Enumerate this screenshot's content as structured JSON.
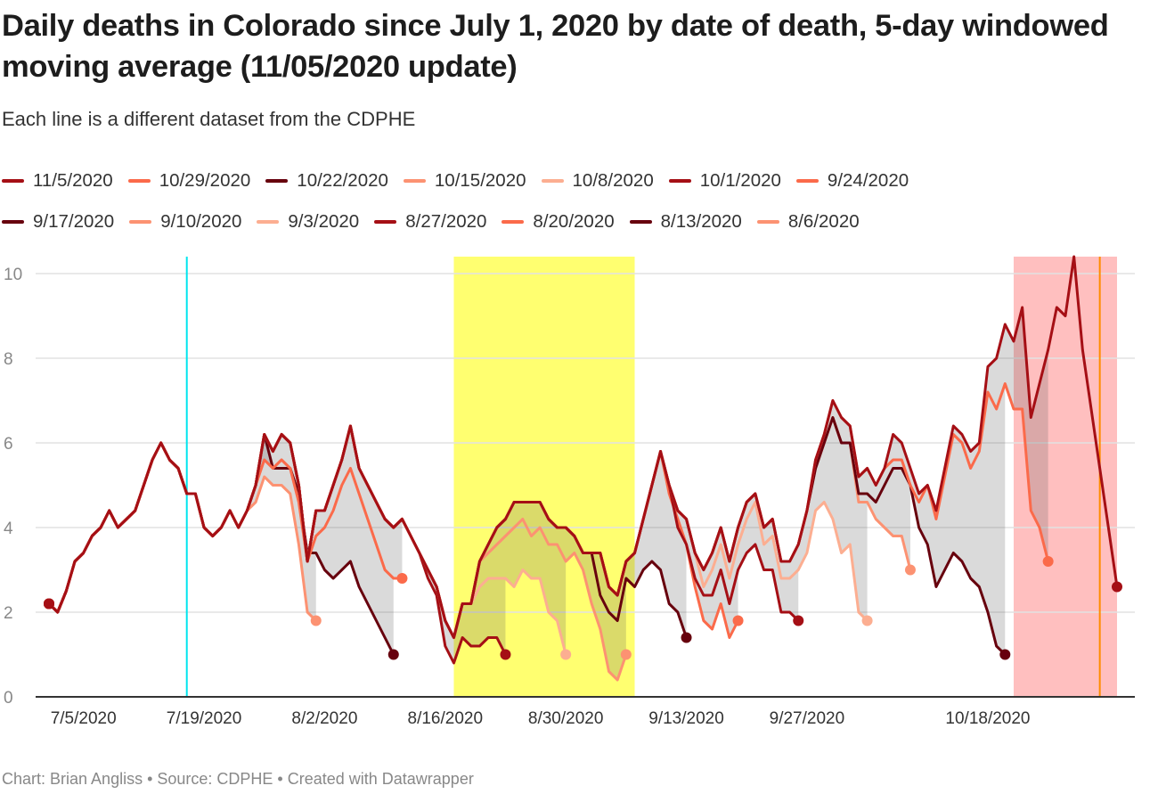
{
  "chart_data": {
    "type": "line",
    "title": "Daily deaths in Colorado since July 1, 2020 by date of death, 5-day windowed moving average (11/05/2020 update)",
    "subtitle": "Each line is a different dataset from the CDPHE",
    "footer": "Chart: Brian Angliss • Source: CDPHE • Created with Datawrapper",
    "xlabel": "",
    "ylabel": "",
    "ylim": [
      0,
      10.4
    ],
    "y_ticks": [
      0,
      2,
      4,
      6,
      8,
      10
    ],
    "x_range": [
      "2020-07-01",
      "2020-11-02"
    ],
    "x_ticks": [
      {
        "date": "2020-07-05",
        "label": "7/5/2020"
      },
      {
        "date": "2020-07-19",
        "label": "7/19/2020"
      },
      {
        "date": "2020-08-02",
        "label": "8/2/2020"
      },
      {
        "date": "2020-08-16",
        "label": "8/16/2020"
      },
      {
        "date": "2020-08-30",
        "label": "8/30/2020"
      },
      {
        "date": "2020-09-13",
        "label": "9/13/2020"
      },
      {
        "date": "2020-09-27",
        "label": "9/27/2020"
      },
      {
        "date": "2020-10-18",
        "label": "10/18/2020"
      }
    ],
    "grid": true,
    "legend_position": "top",
    "annotations": {
      "vertical_lines": [
        {
          "date": "2020-07-17",
          "color": "#00e5ee"
        },
        {
          "date": "2020-10-31",
          "color": "#ff8c00"
        }
      ],
      "ranges": [
        {
          "from": "2020-08-17",
          "to": "2020-09-07",
          "color": "#ffff70"
        },
        {
          "from": "2020-10-21",
          "to": "2020-11-02",
          "color": "#ffbfbf"
        }
      ]
    },
    "latest_values_start": "2020-07-01",
    "latest_values": [
      2.2,
      2.0,
      2.5,
      3.2,
      3.4,
      3.8,
      4.0,
      4.4,
      4.0,
      4.2,
      4.4,
      5.0,
      5.6,
      6.0,
      5.6,
      5.4,
      4.8,
      4.8,
      4.0,
      3.8,
      4.0,
      4.4,
      4.0,
      4.4,
      5.0,
      6.2,
      5.8,
      6.2,
      6.0,
      5.0,
      3.2,
      4.4,
      4.4,
      5.0,
      5.6,
      6.4,
      5.4,
      5.0,
      4.6,
      4.2,
      4.0,
      4.2,
      3.8,
      3.4,
      3.0,
      2.6,
      1.8,
      1.4,
      2.2,
      2.2,
      3.2,
      3.6,
      4.0,
      4.2,
      4.6,
      4.6,
      4.6,
      4.6,
      4.2,
      4.0,
      4.0,
      3.8,
      3.4,
      3.4,
      3.4,
      2.6,
      2.4,
      3.2,
      3.4,
      4.2,
      5.0,
      5.8,
      5.0,
      4.4,
      4.2,
      3.4,
      3.0,
      3.4,
      4.0,
      3.2,
      4.0,
      4.6,
      4.8,
      4.0,
      4.2,
      3.2,
      3.2,
      3.6,
      4.4,
      5.6,
      6.2,
      7.0,
      6.6,
      6.4,
      5.2,
      5.4,
      5.0,
      5.4,
      6.2,
      6.0,
      5.4,
      4.8,
      5.0,
      4.4,
      5.4,
      6.4,
      6.2,
      5.8,
      6.0,
      7.8,
      8.0,
      8.8,
      8.4,
      9.2,
      6.6,
      7.4,
      8.2,
      9.2,
      9.0,
      10.4,
      8.2,
      6.8,
      5.4,
      4.0,
      2.6
    ],
    "series": [
      {
        "name": "11/5/2020",
        "color": "#a50f15",
        "tail_start": "2020-11-02",
        "tail": [
          2.6
        ]
      },
      {
        "name": "10/29/2020",
        "color": "#fb6a4a",
        "tail_start": "2020-10-07",
        "tail": [
          5.6,
          5.6,
          5.0,
          4.6,
          5.0,
          4.2,
          5.2,
          6.2,
          6.0,
          5.4,
          5.8,
          7.2,
          6.8,
          7.4,
          6.8,
          6.8,
          4.4,
          4.0,
          3.2
        ]
      },
      {
        "name": "10/22/2020",
        "color": "#67000d",
        "tail_start": "2020-09-27",
        "tail": [
          4.4,
          5.4,
          6.0,
          6.6,
          6.0,
          6.0,
          4.8,
          4.8,
          4.6,
          5.0,
          5.4,
          5.4,
          5.0,
          4.0,
          3.6,
          2.6,
          3.0,
          3.4,
          3.2,
          2.8,
          2.6,
          2.0,
          1.2,
          1.0
        ]
      },
      {
        "name": "10/15/2020",
        "color": "#fc9272",
        "tail_start": "2020-09-24",
        "tail": [
          3.2,
          3.2,
          3.6,
          4.4,
          5.4,
          6.0,
          6.6,
          6.0,
          6.0,
          4.6,
          4.6,
          4.2,
          4.0,
          3.8,
          3.8,
          3.0
        ]
      },
      {
        "name": "10/8/2020",
        "color": "#fcae91",
        "tail_start": "2020-09-15",
        "tail": [
          2.6,
          3.0,
          3.6,
          2.8,
          3.6,
          4.2,
          4.6,
          3.6,
          3.8,
          2.8,
          2.8,
          3.0,
          3.4,
          4.4,
          4.6,
          4.2,
          3.4,
          3.6,
          2.0,
          1.8
        ]
      },
      {
        "name": "10/1/2020",
        "color": "#a50f15",
        "tail_start": "2020-09-12",
        "tail": [
          4.0,
          3.6,
          2.8,
          2.4,
          2.4,
          3.0,
          2.2,
          3.0,
          3.4,
          3.6,
          3.0,
          3.0,
          2.0,
          2.0,
          1.8
        ]
      },
      {
        "name": "9/24/2020",
        "color": "#fb6a4a",
        "tail_start": "2020-09-11",
        "tail": [
          4.8,
          4.2,
          3.6,
          2.6,
          1.8,
          1.6,
          2.2,
          1.4,
          1.8
        ]
      },
      {
        "name": "9/17/2020",
        "color": "#67000d",
        "tail_start": "2020-09-03",
        "tail": [
          2.4,
          2.0,
          1.8,
          2.8,
          2.6,
          3.0,
          3.2,
          3.0,
          2.2,
          2.0,
          1.4
        ]
      },
      {
        "name": "9/10/2020",
        "color": "#fc9272",
        "tail_start": "2020-08-21",
        "tail": [
          3.4,
          3.6,
          3.8,
          4.0,
          4.2,
          3.8,
          4.0,
          3.6,
          3.6,
          3.2,
          3.4,
          3.0,
          2.2,
          1.6,
          0.6,
          0.4,
          1.0
        ]
      },
      {
        "name": "9/3/2020",
        "color": "#fcae91",
        "tail_start": "2020-08-20",
        "tail": [
          2.6,
          2.8,
          2.8,
          2.8,
          2.6,
          3.0,
          2.8,
          2.8,
          2.0,
          1.8,
          1.0
        ]
      },
      {
        "name": "8/27/2020",
        "color": "#a50f15",
        "tail_start": "2020-08-14",
        "tail": [
          2.8,
          2.4,
          1.2,
          0.8,
          1.4,
          1.2,
          1.2,
          1.4,
          1.4,
          1.0
        ]
      },
      {
        "name": "8/20/2020",
        "color": "#fb6a4a",
        "tail_start": "2020-07-26",
        "tail": [
          5.6,
          5.4,
          5.6,
          5.4,
          4.6,
          3.2,
          3.8,
          4.0,
          4.4,
          5.0,
          5.4,
          4.8,
          4.2,
          3.6,
          3.0,
          2.8,
          2.8
        ]
      },
      {
        "name": "8/13/2020",
        "color": "#67000d",
        "tail_start": "2020-07-27",
        "tail": [
          5.4,
          5.4,
          5.4,
          4.8,
          3.4,
          3.4,
          3.0,
          2.8,
          3.0,
          3.2,
          2.6,
          2.2,
          1.8,
          1.4,
          1.0
        ]
      },
      {
        "name": "8/6/2020",
        "color": "#fc9272",
        "tail_start": "2020-07-25",
        "tail": [
          4.6,
          5.2,
          5.0,
          5.0,
          4.8,
          3.6,
          2.0,
          1.8
        ]
      }
    ]
  }
}
